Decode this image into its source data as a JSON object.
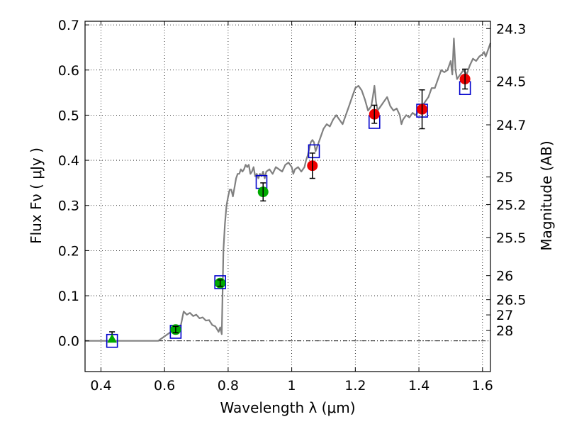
{
  "chart_data": {
    "type": "scatter",
    "xlabel": "Wavelength  λ (μm)",
    "ylabel": "Flux  Fν  ( μJy )",
    "right_ylabel": "Magnitude (AB)",
    "xlim": [
      0.35,
      1.625
    ],
    "ylim": [
      -0.068,
      0.708
    ],
    "x_ticks": [
      0.4,
      0.6,
      0.8,
      1.0,
      1.2,
      1.4,
      1.6
    ],
    "x_tick_labels": [
      "0.4",
      "0.6",
      "0.8",
      "1",
      "1.2",
      "1.4",
      "1.6"
    ],
    "y_ticks": [
      0.0,
      0.1,
      0.2,
      0.3,
      0.4,
      0.5,
      0.6,
      0.7
    ],
    "y_tick_labels": [
      "0.0",
      "0.1",
      "0.2",
      "0.3",
      "0.4",
      "0.5",
      "0.6",
      "0.7"
    ],
    "right_ticks": [
      {
        "mag": 24.3,
        "label": "24.3"
      },
      {
        "mag": 24.5,
        "label": "24.5"
      },
      {
        "mag": 24.7,
        "label": "24.7"
      },
      {
        "mag": 25.0,
        "label": "25"
      },
      {
        "mag": 25.2,
        "label": "25.2"
      },
      {
        "mag": 25.5,
        "label": "25.5"
      },
      {
        "mag": 26.0,
        "label": "26"
      },
      {
        "mag": 26.5,
        "label": "26.5"
      },
      {
        "mag": 27.0,
        "label": "27"
      },
      {
        "mag": 28.0,
        "label": "28"
      }
    ],
    "mag_zero_point": 23.9,
    "grid": true,
    "zero_line": true,
    "model_spectrum": {
      "color": "#808080",
      "points": [
        [
          0.35,
          0.0
        ],
        [
          0.58,
          0.0
        ],
        [
          0.6,
          0.01
        ],
        [
          0.62,
          0.02
        ],
        [
          0.635,
          0.025
        ],
        [
          0.65,
          0.03
        ],
        [
          0.66,
          0.065
        ],
        [
          0.67,
          0.058
        ],
        [
          0.68,
          0.062
        ],
        [
          0.69,
          0.055
        ],
        [
          0.7,
          0.058
        ],
        [
          0.71,
          0.05
        ],
        [
          0.72,
          0.052
        ],
        [
          0.73,
          0.045
        ],
        [
          0.74,
          0.046
        ],
        [
          0.75,
          0.035
        ],
        [
          0.76,
          0.032
        ],
        [
          0.77,
          0.02
        ],
        [
          0.775,
          0.03
        ],
        [
          0.78,
          0.015
        ],
        [
          0.785,
          0.2
        ],
        [
          0.79,
          0.26
        ],
        [
          0.795,
          0.3
        ],
        [
          0.8,
          0.32
        ],
        [
          0.805,
          0.335
        ],
        [
          0.81,
          0.335
        ],
        [
          0.815,
          0.32
        ],
        [
          0.82,
          0.34
        ],
        [
          0.825,
          0.36
        ],
        [
          0.83,
          0.37
        ],
        [
          0.835,
          0.37
        ],
        [
          0.84,
          0.38
        ],
        [
          0.845,
          0.375
        ],
        [
          0.85,
          0.38
        ],
        [
          0.855,
          0.39
        ],
        [
          0.86,
          0.385
        ],
        [
          0.865,
          0.39
        ],
        [
          0.87,
          0.37
        ],
        [
          0.875,
          0.375
        ],
        [
          0.88,
          0.385
        ],
        [
          0.885,
          0.365
        ],
        [
          0.89,
          0.37
        ],
        [
          0.895,
          0.36
        ],
        [
          0.9,
          0.37
        ],
        [
          0.905,
          0.365
        ],
        [
          0.91,
          0.375
        ],
        [
          0.915,
          0.36
        ],
        [
          0.92,
          0.375
        ],
        [
          0.93,
          0.38
        ],
        [
          0.94,
          0.37
        ],
        [
          0.95,
          0.385
        ],
        [
          0.96,
          0.38
        ],
        [
          0.97,
          0.375
        ],
        [
          0.98,
          0.39
        ],
        [
          0.99,
          0.395
        ],
        [
          1.0,
          0.385
        ],
        [
          1.005,
          0.37
        ],
        [
          1.01,
          0.38
        ],
        [
          1.02,
          0.385
        ],
        [
          1.03,
          0.375
        ],
        [
          1.04,
          0.385
        ],
        [
          1.045,
          0.4
        ],
        [
          1.05,
          0.41
        ],
        [
          1.06,
          0.44
        ],
        [
          1.065,
          0.445
        ],
        [
          1.07,
          0.44
        ],
        [
          1.075,
          0.42
        ],
        [
          1.08,
          0.43
        ],
        [
          1.09,
          0.45
        ],
        [
          1.1,
          0.47
        ],
        [
          1.11,
          0.48
        ],
        [
          1.12,
          0.475
        ],
        [
          1.13,
          0.49
        ],
        [
          1.14,
          0.5
        ],
        [
          1.15,
          0.49
        ],
        [
          1.16,
          0.48
        ],
        [
          1.17,
          0.5
        ],
        [
          1.18,
          0.52
        ],
        [
          1.19,
          0.54
        ],
        [
          1.2,
          0.56
        ],
        [
          1.21,
          0.565
        ],
        [
          1.22,
          0.555
        ],
        [
          1.23,
          0.535
        ],
        [
          1.24,
          0.51
        ],
        [
          1.25,
          0.52
        ],
        [
          1.255,
          0.54
        ],
        [
          1.26,
          0.565
        ],
        [
          1.265,
          0.53
        ],
        [
          1.27,
          0.51
        ],
        [
          1.28,
          0.52
        ],
        [
          1.29,
          0.53
        ],
        [
          1.3,
          0.54
        ],
        [
          1.31,
          0.52
        ],
        [
          1.32,
          0.51
        ],
        [
          1.33,
          0.515
        ],
        [
          1.34,
          0.5
        ],
        [
          1.345,
          0.48
        ],
        [
          1.35,
          0.49
        ],
        [
          1.36,
          0.5
        ],
        [
          1.37,
          0.495
        ],
        [
          1.38,
          0.505
        ],
        [
          1.39,
          0.5
        ],
        [
          1.4,
          0.51
        ],
        [
          1.41,
          0.52
        ],
        [
          1.42,
          0.53
        ],
        [
          1.43,
          0.54
        ],
        [
          1.44,
          0.56
        ],
        [
          1.45,
          0.56
        ],
        [
          1.46,
          0.58
        ],
        [
          1.47,
          0.6
        ],
        [
          1.48,
          0.595
        ],
        [
          1.49,
          0.6
        ],
        [
          1.5,
          0.62
        ],
        [
          1.505,
          0.59
        ],
        [
          1.51,
          0.67
        ],
        [
          1.515,
          0.6
        ],
        [
          1.52,
          0.58
        ],
        [
          1.53,
          0.59
        ],
        [
          1.54,
          0.6
        ],
        [
          1.55,
          0.59
        ],
        [
          1.56,
          0.61
        ],
        [
          1.57,
          0.625
        ],
        [
          1.58,
          0.62
        ],
        [
          1.59,
          0.63
        ],
        [
          1.6,
          0.635
        ],
        [
          1.605,
          0.64
        ],
        [
          1.61,
          0.63
        ],
        [
          1.625,
          0.66
        ]
      ]
    },
    "model_photometry": {
      "marker": "open-square",
      "color": "#0000cc",
      "points": [
        [
          0.435,
          0.0
        ],
        [
          0.635,
          0.02
        ],
        [
          0.775,
          0.13
        ],
        [
          0.905,
          0.352
        ],
        [
          1.07,
          0.42
        ],
        [
          1.26,
          0.485
        ],
        [
          1.41,
          0.51
        ],
        [
          1.545,
          0.56
        ]
      ]
    },
    "observed_green": {
      "color": "#00aa00",
      "points": [
        {
          "x": 0.635,
          "y": 0.025,
          "err": 0.007
        },
        {
          "x": 0.775,
          "y": 0.128,
          "err": 0.007
        },
        {
          "x": 0.91,
          "y": 0.33,
          "err": 0.02
        }
      ]
    },
    "observed_upper_limit": {
      "color": "#00aa00",
      "marker": "triangle",
      "points": [
        {
          "x": 0.435,
          "y": 0.003,
          "err_low": 0.003,
          "err_high": 0.017
        }
      ]
    },
    "observed_red": {
      "color": "#ee0000",
      "points": [
        {
          "x": 1.065,
          "y": 0.388,
          "err": 0.028
        },
        {
          "x": 1.26,
          "y": 0.502,
          "err": 0.02
        },
        {
          "x": 1.41,
          "y": 0.513,
          "err": 0.043
        },
        {
          "x": 1.545,
          "y": 0.58,
          "err": 0.022
        }
      ]
    }
  }
}
